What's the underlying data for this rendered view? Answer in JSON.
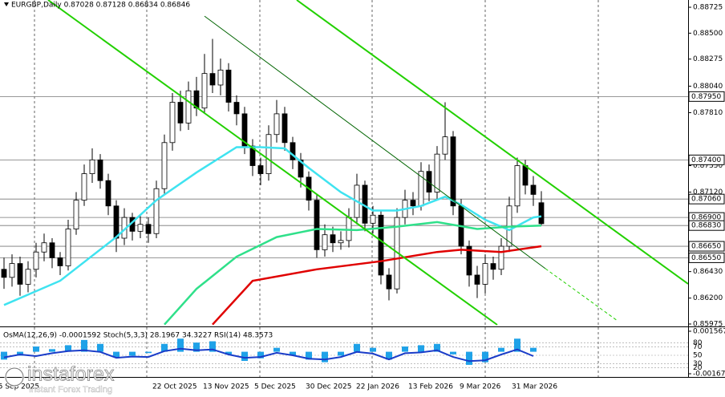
{
  "chart_data": {
    "type": "candlestick",
    "title": "EURGBP,Daily  0.87028 0.87128 0.86834 0.86846",
    "xlim": [
      -0.5,
      85.3
    ],
    "ylim": [
      0.85961,
      0.88788
    ],
    "yticks": [
      0.88725,
      {
        "value": 0.885,
        "label": "0.88500"
      },
      0.88275,
      {
        "value": 0.8804,
        "label": "0.88040"
      },
      {
        "value": 0.8781,
        "label": "0.87810"
      },
      {
        "value": 0.8735,
        "label": "0.87350"
      },
      {
        "value": 0.8712,
        "label": "0.87120"
      },
      {
        "value": 0.8643,
        "label": "0.86430"
      },
      {
        "value": 0.862,
        "label": "0.86200"
      },
      0.85975
    ],
    "levels": [
      {
        "value": 0.8795,
        "label": "0.87950"
      },
      {
        "value": 0.874,
        "label": "0.87400"
      },
      {
        "value": 0.8706,
        "label": "0.87060"
      },
      {
        "value": 0.869,
        "label": "0.86900"
      },
      {
        "value": 0.8683,
        "label": "0.86830"
      },
      {
        "value": 0.8665,
        "label": "0.86650"
      },
      {
        "value": 0.8655,
        "label": "0.86550"
      }
    ],
    "xgrid": [
      3.8,
      17.8,
      31.9,
      45.9,
      60,
      74.1
    ],
    "xticks": [
      {
        "value": -1.3,
        "label": "15 Sep 2025"
      },
      {
        "value": 18.5,
        "label": "22 Oct 2025"
      },
      {
        "value": 24.8,
        "label": "13 Nov 2025"
      },
      {
        "value": 31.2,
        "label": "5 Dec 2025"
      },
      {
        "value": 37.6,
        "label": "30 Dec 2025"
      },
      {
        "value": 43.9,
        "label": "22 Jan 2026"
      },
      {
        "value": 50.4,
        "label": "13 Feb 2026"
      },
      {
        "value": 56.8,
        "label": "9 Mar 2026"
      },
      {
        "value": 63.3,
        "label": "31 Mar 2026"
      }
    ],
    "candles": [
      [
        0.8645,
        0.8655,
        0.8628,
        0.8638
      ],
      [
        0.8638,
        0.8658,
        0.863,
        0.865
      ],
      [
        0.865,
        0.8656,
        0.8622,
        0.8632
      ],
      [
        0.8632,
        0.8652,
        0.8625,
        0.8645
      ],
      [
        0.8645,
        0.8668,
        0.8638,
        0.866
      ],
      [
        0.866,
        0.8676,
        0.8652,
        0.8668
      ],
      [
        0.8668,
        0.8672,
        0.8646,
        0.8655
      ],
      [
        0.8655,
        0.866,
        0.864,
        0.8648
      ],
      [
        0.8648,
        0.8688,
        0.8644,
        0.868
      ],
      [
        0.868,
        0.8712,
        0.8675,
        0.8705
      ],
      [
        0.8705,
        0.8736,
        0.87,
        0.8728
      ],
      [
        0.8728,
        0.875,
        0.872,
        0.874
      ],
      [
        0.874,
        0.8745,
        0.8715,
        0.8722
      ],
      [
        0.8722,
        0.8728,
        0.8692,
        0.87
      ],
      [
        0.87,
        0.8705,
        0.866,
        0.8672
      ],
      [
        0.8672,
        0.8698,
        0.8666,
        0.869
      ],
      [
        0.869,
        0.8694,
        0.867,
        0.8678
      ],
      [
        0.8678,
        0.8692,
        0.8672,
        0.8684
      ],
      [
        0.8684,
        0.869,
        0.8668,
        0.8676
      ],
      [
        0.8676,
        0.8722,
        0.8672,
        0.8715
      ],
      [
        0.8715,
        0.8762,
        0.871,
        0.8755
      ],
      [
        0.8755,
        0.8798,
        0.8748,
        0.879
      ],
      [
        0.879,
        0.88,
        0.8765,
        0.8772
      ],
      [
        0.8772,
        0.8808,
        0.8766,
        0.88
      ],
      [
        0.88,
        0.8812,
        0.8778,
        0.8785
      ],
      [
        0.8785,
        0.8832,
        0.878,
        0.8815
      ],
      [
        0.8815,
        0.8845,
        0.8798,
        0.8805
      ],
      [
        0.8805,
        0.8828,
        0.8796,
        0.8818
      ],
      [
        0.8818,
        0.8824,
        0.8782,
        0.879
      ],
      [
        0.879,
        0.8796,
        0.877,
        0.878
      ],
      [
        0.878,
        0.8786,
        0.8745,
        0.8752
      ],
      [
        0.8752,
        0.8758,
        0.8726,
        0.8735
      ],
      [
        0.8735,
        0.8742,
        0.8718,
        0.8728
      ],
      [
        0.8728,
        0.877,
        0.8722,
        0.8762
      ],
      [
        0.8762,
        0.8792,
        0.8755,
        0.878
      ],
      [
        0.878,
        0.8786,
        0.8748,
        0.8755
      ],
      [
        0.8755,
        0.876,
        0.8732,
        0.874
      ],
      [
        0.874,
        0.8746,
        0.8716,
        0.8725
      ],
      [
        0.8725,
        0.873,
        0.8696,
        0.8705
      ],
      [
        0.8705,
        0.871,
        0.8655,
        0.8662
      ],
      [
        0.8662,
        0.8684,
        0.8656,
        0.8675
      ],
      [
        0.8675,
        0.8682,
        0.866,
        0.8668
      ],
      [
        0.8668,
        0.8678,
        0.8662,
        0.867
      ],
      [
        0.867,
        0.8698,
        0.8664,
        0.869
      ],
      [
        0.869,
        0.8728,
        0.8684,
        0.8718
      ],
      [
        0.8718,
        0.8722,
        0.8678,
        0.8685
      ],
      [
        0.8685,
        0.87,
        0.8676,
        0.8692
      ],
      [
        0.8692,
        0.8696,
        0.8632,
        0.864
      ],
      [
        0.864,
        0.8646,
        0.8618,
        0.8628
      ],
      [
        0.8628,
        0.8698,
        0.8624,
        0.869
      ],
      [
        0.869,
        0.8714,
        0.8684,
        0.8705
      ],
      [
        0.8705,
        0.8712,
        0.8692,
        0.87
      ],
      [
        0.87,
        0.8738,
        0.8696,
        0.873
      ],
      [
        0.873,
        0.8736,
        0.8704,
        0.8712
      ],
      [
        0.8712,
        0.8752,
        0.8706,
        0.8745
      ],
      [
        0.8745,
        0.879,
        0.874,
        0.876
      ],
      [
        0.876,
        0.8765,
        0.8692,
        0.87
      ],
      [
        0.87,
        0.8706,
        0.8658,
        0.8665
      ],
      [
        0.8665,
        0.867,
        0.863,
        0.864
      ],
      [
        0.864,
        0.8648,
        0.862,
        0.8632
      ],
      [
        0.8632,
        0.8658,
        0.8624,
        0.865
      ],
      [
        0.865,
        0.8656,
        0.8636,
        0.8645
      ],
      [
        0.8645,
        0.8672,
        0.864,
        0.8665
      ],
      [
        0.8665,
        0.8708,
        0.866,
        0.87
      ],
      [
        0.87,
        0.8742,
        0.8694,
        0.8735
      ],
      [
        0.8735,
        0.874,
        0.871,
        0.8718
      ],
      [
        0.8718,
        0.8726,
        0.87,
        0.871
      ],
      [
        0.87028,
        0.87128,
        0.86834,
        0.86846
      ]
    ],
    "series": [
      {
        "color": "#3fe3f0",
        "x": [
          0,
          7,
          14,
          19,
          24,
          29,
          32,
          35,
          38,
          42,
          46,
          49,
          52,
          55,
          57,
          60,
          63,
          66,
          67
        ],
        "values": [
          0.8614,
          0.8635,
          0.8673,
          0.8705,
          0.8729,
          0.8751,
          0.8751,
          0.875,
          0.8733,
          0.8712,
          0.8696,
          0.8696,
          0.87,
          0.8708,
          0.8701,
          0.8688,
          0.8679,
          0.869,
          0.8691
        ]
      },
      {
        "color": "#2fe08a",
        "x": [
          20,
          24,
          29,
          34,
          39,
          44,
          49,
          54,
          59,
          63,
          67
        ],
        "values": [
          0.8597,
          0.8628,
          0.8656,
          0.8673,
          0.868,
          0.8679,
          0.8682,
          0.8686,
          0.868,
          0.8682,
          0.8683
        ]
      },
      {
        "color": "#e00000",
        "x": [
          26,
          31,
          39,
          47,
          54,
          57,
          62,
          67
        ],
        "values": [
          0.8597,
          0.8635,
          0.8645,
          0.8652,
          0.866,
          0.8662,
          0.866,
          0.8665
        ]
      }
    ],
    "trendlines": [
      {
        "color": "#22d000",
        "width": 2,
        "x": [
          5.5,
          61.5
        ],
        "values": [
          0.88788,
          0.85968
        ]
      },
      {
        "color": "#22d000",
        "width": 2,
        "x": [
          36.5,
          85.3
        ],
        "values": [
          0.88788,
          0.86323
        ]
      },
      {
        "color": "#006400",
        "width": 1,
        "x": [
          25,
          67.5
        ],
        "values": [
          0.88648,
          0.86456
        ]
      },
      {
        "color": "#22d000",
        "width": 1,
        "dashed": true,
        "x": [
          67.5,
          76.5
        ],
        "values": [
          0.86456,
          0.86003
        ]
      }
    ],
    "indicator": {
      "title": "OsMA(12,26,9) -0.0001592  Stoch(5,3,3) 28.1967 34.3227  RSI(14) 48.3573",
      "osma_lim": [
        -0.0016791,
        0.0015672
      ],
      "osma_ticks": [
        0.0015672,
        -0.0016791
      ],
      "rsi_lim": [
        0,
        100
      ],
      "rsi_ticks": [
        80,
        70,
        50,
        30,
        20
      ],
      "x": [
        0,
        2,
        4,
        6,
        8,
        10,
        12,
        14,
        16,
        18,
        20,
        22,
        24,
        26,
        28,
        30,
        32,
        34,
        36,
        38,
        40,
        42,
        44,
        46,
        48,
        50,
        52,
        54,
        56,
        58,
        60,
        62,
        64,
        66
      ],
      "osma": [
        -0.0006,
        -0.0003,
        0.0004,
        0.0002,
        0.0005,
        0.0009,
        0.0006,
        -0.0004,
        -0.0003,
        -0.0001,
        0.0006,
        0.001,
        0.0007,
        0.0008,
        -0.0002,
        -0.0007,
        -0.0005,
        0.0003,
        -0.0003,
        -0.0006,
        -0.0008,
        -0.0003,
        0.0006,
        0.0003,
        -0.0006,
        0.0004,
        0.0005,
        0.0006,
        -0.0002,
        -0.001,
        -0.0008,
        0.0003,
        0.001,
        0.0003
      ],
      "osma_color": "#1fa2e8",
      "rsi": [
        45,
        52,
        48,
        55,
        60,
        62,
        58,
        44,
        47,
        46,
        60,
        66,
        62,
        64,
        52,
        44,
        46,
        56,
        50,
        42,
        40,
        46,
        58,
        54,
        40,
        55,
        57,
        62,
        46,
        36,
        38,
        52,
        64,
        48
      ],
      "rsi_color": "#1a3cc8"
    },
    "watermark": {
      "brand": "instaforex",
      "tagline": "Instant Forex Trading"
    }
  }
}
